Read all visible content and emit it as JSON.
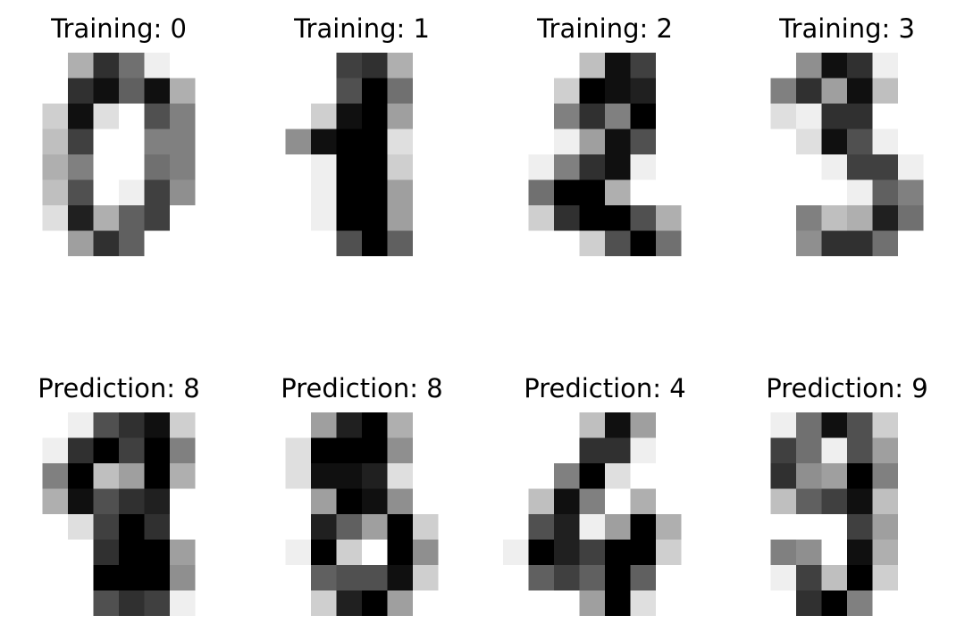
{
  "chart_data": [
    {
      "type": "heatmap",
      "colormap": "gray_r",
      "range": [
        0,
        16
      ],
      "title": "Training: 0",
      "grid": [
        [
          0,
          0,
          5,
          13,
          9,
          1,
          0,
          0
        ],
        [
          0,
          0,
          13,
          15,
          10,
          15,
          5,
          0
        ],
        [
          0,
          3,
          15,
          2,
          0,
          11,
          8,
          0
        ],
        [
          0,
          4,
          12,
          0,
          0,
          8,
          8,
          0
        ],
        [
          0,
          5,
          8,
          0,
          0,
          9,
          8,
          0
        ],
        [
          0,
          4,
          11,
          0,
          1,
          12,
          7,
          0
        ],
        [
          0,
          2,
          14,
          5,
          10,
          12,
          0,
          0
        ],
        [
          0,
          0,
          6,
          13,
          10,
          0,
          0,
          0
        ]
      ]
    },
    {
      "type": "heatmap",
      "colormap": "gray_r",
      "range": [
        0,
        16
      ],
      "title": "Training: 1",
      "grid": [
        [
          0,
          0,
          0,
          12,
          13,
          5,
          0,
          0
        ],
        [
          0,
          0,
          0,
          11,
          16,
          9,
          0,
          0
        ],
        [
          0,
          0,
          3,
          15,
          16,
          6,
          0,
          0
        ],
        [
          0,
          7,
          15,
          16,
          16,
          2,
          0,
          0
        ],
        [
          0,
          0,
          1,
          16,
          16,
          3,
          0,
          0
        ],
        [
          0,
          0,
          1,
          16,
          16,
          6,
          0,
          0
        ],
        [
          0,
          0,
          1,
          16,
          16,
          6,
          0,
          0
        ],
        [
          0,
          0,
          0,
          11,
          16,
          10,
          0,
          0
        ]
      ]
    },
    {
      "type": "heatmap",
      "colormap": "gray_r",
      "range": [
        0,
        16
      ],
      "title": "Training: 2",
      "grid": [
        [
          0,
          0,
          0,
          4,
          15,
          12,
          0,
          0
        ],
        [
          0,
          0,
          3,
          16,
          15,
          14,
          0,
          0
        ],
        [
          0,
          0,
          8,
          13,
          8,
          16,
          0,
          0
        ],
        [
          0,
          0,
          1,
          6,
          15,
          11,
          0,
          0
        ],
        [
          0,
          1,
          8,
          13,
          15,
          1,
          0,
          0
        ],
        [
          0,
          9,
          16,
          16,
          5,
          0,
          0,
          0
        ],
        [
          0,
          3,
          13,
          16,
          16,
          11,
          5,
          0
        ],
        [
          0,
          0,
          0,
          3,
          11,
          16,
          9,
          0
        ]
      ]
    },
    {
      "type": "heatmap",
      "colormap": "gray_r",
      "range": [
        0,
        16
      ],
      "title": "Training: 3",
      "grid": [
        [
          0,
          0,
          7,
          15,
          13,
          1,
          0,
          0
        ],
        [
          0,
          8,
          13,
          6,
          15,
          4,
          0,
          0
        ],
        [
          0,
          2,
          1,
          13,
          13,
          0,
          0,
          0
        ],
        [
          0,
          0,
          2,
          15,
          11,
          1,
          0,
          0
        ],
        [
          0,
          0,
          0,
          1,
          12,
          12,
          1,
          0
        ],
        [
          0,
          0,
          0,
          0,
          1,
          10,
          8,
          0
        ],
        [
          0,
          0,
          8,
          4,
          5,
          14,
          9,
          0
        ],
        [
          0,
          0,
          7,
          13,
          13,
          9,
          0,
          0
        ]
      ]
    },
    {
      "type": "heatmap",
      "colormap": "gray_r",
      "range": [
        0,
        16
      ],
      "title": "Prediction: 8",
      "grid": [
        [
          0,
          0,
          1,
          11,
          13,
          15,
          3,
          0
        ],
        [
          0,
          1,
          13,
          16,
          12,
          16,
          8,
          0
        ],
        [
          0,
          8,
          16,
          4,
          6,
          16,
          5,
          0
        ],
        [
          0,
          5,
          15,
          11,
          13,
          14,
          0,
          0
        ],
        [
          0,
          0,
          2,
          12,
          16,
          13,
          0,
          0
        ],
        [
          0,
          0,
          0,
          13,
          16,
          16,
          6,
          0
        ],
        [
          0,
          0,
          0,
          16,
          16,
          16,
          7,
          0
        ],
        [
          0,
          0,
          0,
          11,
          13,
          12,
          1,
          0
        ]
      ]
    },
    {
      "type": "heatmap",
      "colormap": "gray_r",
      "range": [
        0,
        16
      ],
      "title": "Prediction: 8",
      "grid": [
        [
          0,
          0,
          6,
          14,
          16,
          5,
          0,
          0
        ],
        [
          0,
          2,
          16,
          16,
          16,
          7,
          0,
          0
        ],
        [
          0,
          2,
          15,
          15,
          14,
          2,
          0,
          0
        ],
        [
          0,
          0,
          6,
          16,
          15,
          7,
          0,
          0
        ],
        [
          0,
          0,
          14,
          10,
          6,
          16,
          3,
          0
        ],
        [
          0,
          1,
          16,
          3,
          0,
          16,
          7,
          0
        ],
        [
          0,
          0,
          10,
          11,
          11,
          15,
          3,
          0
        ],
        [
          0,
          0,
          3,
          14,
          16,
          6,
          0,
          0
        ]
      ]
    },
    {
      "type": "heatmap",
      "colormap": "gray_r",
      "range": [
        0,
        16
      ],
      "title": "Prediction: 4",
      "grid": [
        [
          0,
          0,
          0,
          4,
          15,
          6,
          0,
          0
        ],
        [
          0,
          0,
          0,
          13,
          13,
          1,
          0,
          0
        ],
        [
          0,
          0,
          8,
          16,
          2,
          0,
          0,
          0
        ],
        [
          0,
          4,
          15,
          8,
          0,
          5,
          0,
          0
        ],
        [
          0,
          11,
          14,
          1,
          6,
          16,
          5,
          0
        ],
        [
          1,
          16,
          14,
          12,
          16,
          16,
          3,
          0
        ],
        [
          0,
          10,
          12,
          10,
          16,
          10,
          0,
          0
        ],
        [
          0,
          0,
          0,
          6,
          16,
          2,
          0,
          0
        ]
      ]
    },
    {
      "type": "heatmap",
      "colormap": "gray_r",
      "range": [
        0,
        16
      ],
      "title": "Prediction: 9",
      "grid": [
        [
          0,
          1,
          9,
          15,
          11,
          3,
          0,
          0
        ],
        [
          0,
          12,
          9,
          1,
          11,
          6,
          0,
          0
        ],
        [
          0,
          13,
          7,
          6,
          16,
          8,
          0,
          0
        ],
        [
          0,
          4,
          10,
          12,
          15,
          4,
          0,
          0
        ],
        [
          0,
          0,
          0,
          0,
          12,
          6,
          0,
          0
        ],
        [
          0,
          8,
          7,
          0,
          15,
          5,
          0,
          0
        ],
        [
          0,
          1,
          12,
          4,
          16,
          3,
          0,
          0
        ],
        [
          0,
          0,
          13,
          16,
          8,
          0,
          0,
          0
        ]
      ]
    }
  ]
}
